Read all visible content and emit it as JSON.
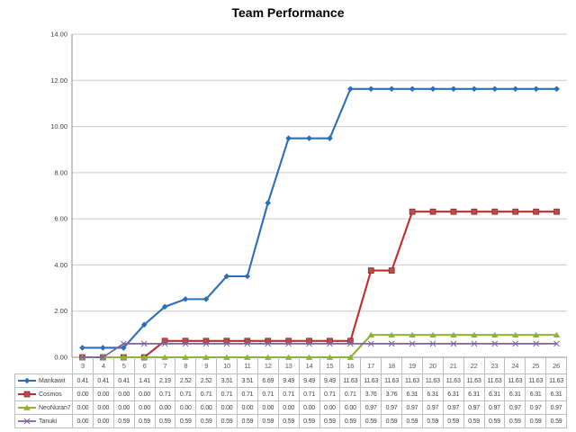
{
  "chart_data": {
    "type": "line",
    "title": "Team Performance",
    "xlabel": "",
    "ylabel": "",
    "categories": [
      3,
      4,
      5,
      6,
      7,
      8,
      9,
      10,
      11,
      12,
      13,
      14,
      15,
      16,
      17,
      18,
      19,
      20,
      21,
      22,
      23,
      24,
      25,
      26
    ],
    "series": [
      {
        "name": "Mankawit",
        "color": "#2A70B8",
        "marker": "diamond",
        "marker_fill": "#2A70B8",
        "marker_border": "#2A70B8",
        "values": [
          0.41,
          0.41,
          0.41,
          1.41,
          2.19,
          2.52,
          2.52,
          3.51,
          3.51,
          6.69,
          9.49,
          9.49,
          9.49,
          11.63,
          11.63,
          11.63,
          11.63,
          11.63,
          11.63,
          11.63,
          11.63,
          11.63,
          11.63,
          11.63
        ]
      },
      {
        "name": "Cosmos",
        "color": "#BE2E2D",
        "marker": "square",
        "marker_fill": "#BE4B48",
        "marker_border": "#8C3836",
        "values": [
          0.0,
          0.0,
          0.0,
          0.0,
          0.71,
          0.71,
          0.71,
          0.71,
          0.71,
          0.71,
          0.71,
          0.71,
          0.71,
          0.71,
          3.76,
          3.76,
          6.31,
          6.31,
          6.31,
          6.31,
          6.31,
          6.31,
          6.31,
          6.31
        ]
      },
      {
        "name": "NeoNuran7",
        "color": "#8DB33C",
        "marker": "triangle-up",
        "marker_fill": "#8DB33C",
        "marker_border": "#8DB33C",
        "values": [
          0.0,
          0.0,
          0.0,
          0.0,
          0.0,
          0.0,
          0.0,
          0.0,
          0.0,
          0.0,
          0.0,
          0.0,
          0.0,
          0.0,
          0.97,
          0.97,
          0.97,
          0.97,
          0.97,
          0.97,
          0.97,
          0.97,
          0.97,
          0.97
        ]
      },
      {
        "name": "Tanuki",
        "color": "#7D60A0",
        "marker": "x",
        "marker_fill": "none",
        "marker_border": "#7D60A0",
        "values": [
          0.0,
          0.0,
          0.59,
          0.59,
          0.59,
          0.59,
          0.59,
          0.59,
          0.59,
          0.59,
          0.59,
          0.59,
          0.59,
          0.59,
          0.59,
          0.59,
          0.59,
          0.59,
          0.59,
          0.59,
          0.59,
          0.59,
          0.59,
          0.59
        ]
      }
    ],
    "ylim": [
      0,
      14
    ],
    "y_ticks": [
      0,
      2,
      4,
      6,
      8,
      10,
      12,
      14
    ],
    "y_tick_labels": [
      "0.00",
      "2.00",
      "4.00",
      "6.00",
      "8.00",
      "10.00",
      "12.00",
      "14.00"
    ],
    "value_format_decimals": 2,
    "grid": true,
    "legend_position": "data-table-left"
  },
  "colors": {
    "gridline": "#C9C9C9",
    "axis": "#8E8E8E",
    "table_border": "#BDBDBD",
    "tick_text": "#404040",
    "category_text": "#595959",
    "background": "#FFFFFF"
  }
}
